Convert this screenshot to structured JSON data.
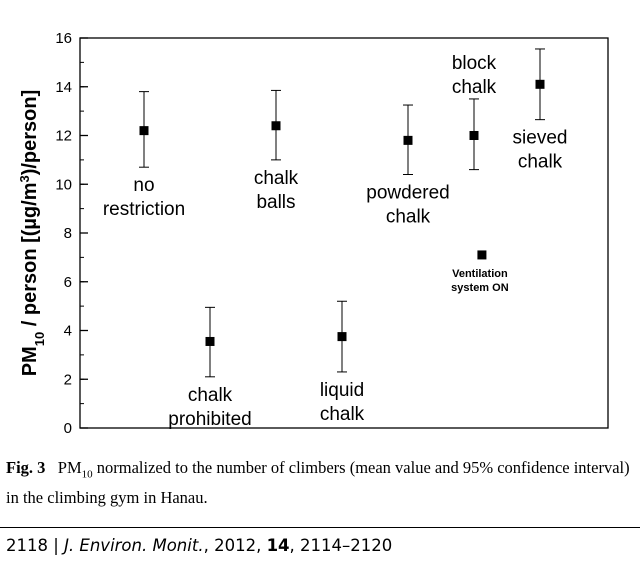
{
  "chart_data": {
    "type": "scatter",
    "ylabel": "PM10 / person [(µg/m³)/person]",
    "ylim": [
      0,
      16
    ],
    "yticks": [
      0,
      2,
      4,
      6,
      8,
      10,
      12,
      14,
      16
    ],
    "yticks_minor_step": 1,
    "xticks": false,
    "grid": false,
    "points": [
      {
        "label": [
          "no",
          "restriction"
        ],
        "y": 12.2,
        "lo": 10.7,
        "hi": 13.8,
        "xi": 1.0,
        "label_pos": "below"
      },
      {
        "label": [
          "chalk",
          "prohibited"
        ],
        "y": 3.55,
        "lo": 2.1,
        "hi": 4.95,
        "xi": 2.0,
        "label_pos": "below"
      },
      {
        "label": [
          "chalk",
          "balls"
        ],
        "y": 12.4,
        "lo": 11.0,
        "hi": 13.85,
        "xi": 3.0,
        "label_pos": "below"
      },
      {
        "label": [
          "liquid",
          "chalk"
        ],
        "y": 3.75,
        "lo": 2.3,
        "hi": 5.2,
        "xi": 4.0,
        "label_pos": "below"
      },
      {
        "label": [
          "powdered",
          "chalk"
        ],
        "y": 11.8,
        "lo": 10.4,
        "hi": 13.25,
        "xi": 5.0,
        "label_pos": "below"
      },
      {
        "label": [
          "block",
          "chalk"
        ],
        "y": 12.0,
        "lo": 10.6,
        "hi": 13.5,
        "xi": 6.0,
        "label_pos": "above"
      },
      {
        "label": [
          "sieved",
          "chalk"
        ],
        "y": 14.1,
        "lo": 12.65,
        "hi": 15.55,
        "xi": 7.0,
        "label_pos": "below"
      }
    ],
    "annotation": {
      "text": [
        "Ventilation",
        "system ON"
      ],
      "y": 7.1,
      "xi": 6.12
    }
  },
  "caption": {
    "fig_label": "Fig. 3",
    "text_1": "PM",
    "text_sub": "10",
    "text_2": " normalized to the number of climbers (mean value and 95% confidence interval) in the climbing gym in Hanau."
  },
  "footer": {
    "page": "2118",
    "sep": "|",
    "journal": "J. Environ. Monit.",
    "year": "2012,",
    "volume": "14",
    "pages": "2114–2120"
  }
}
